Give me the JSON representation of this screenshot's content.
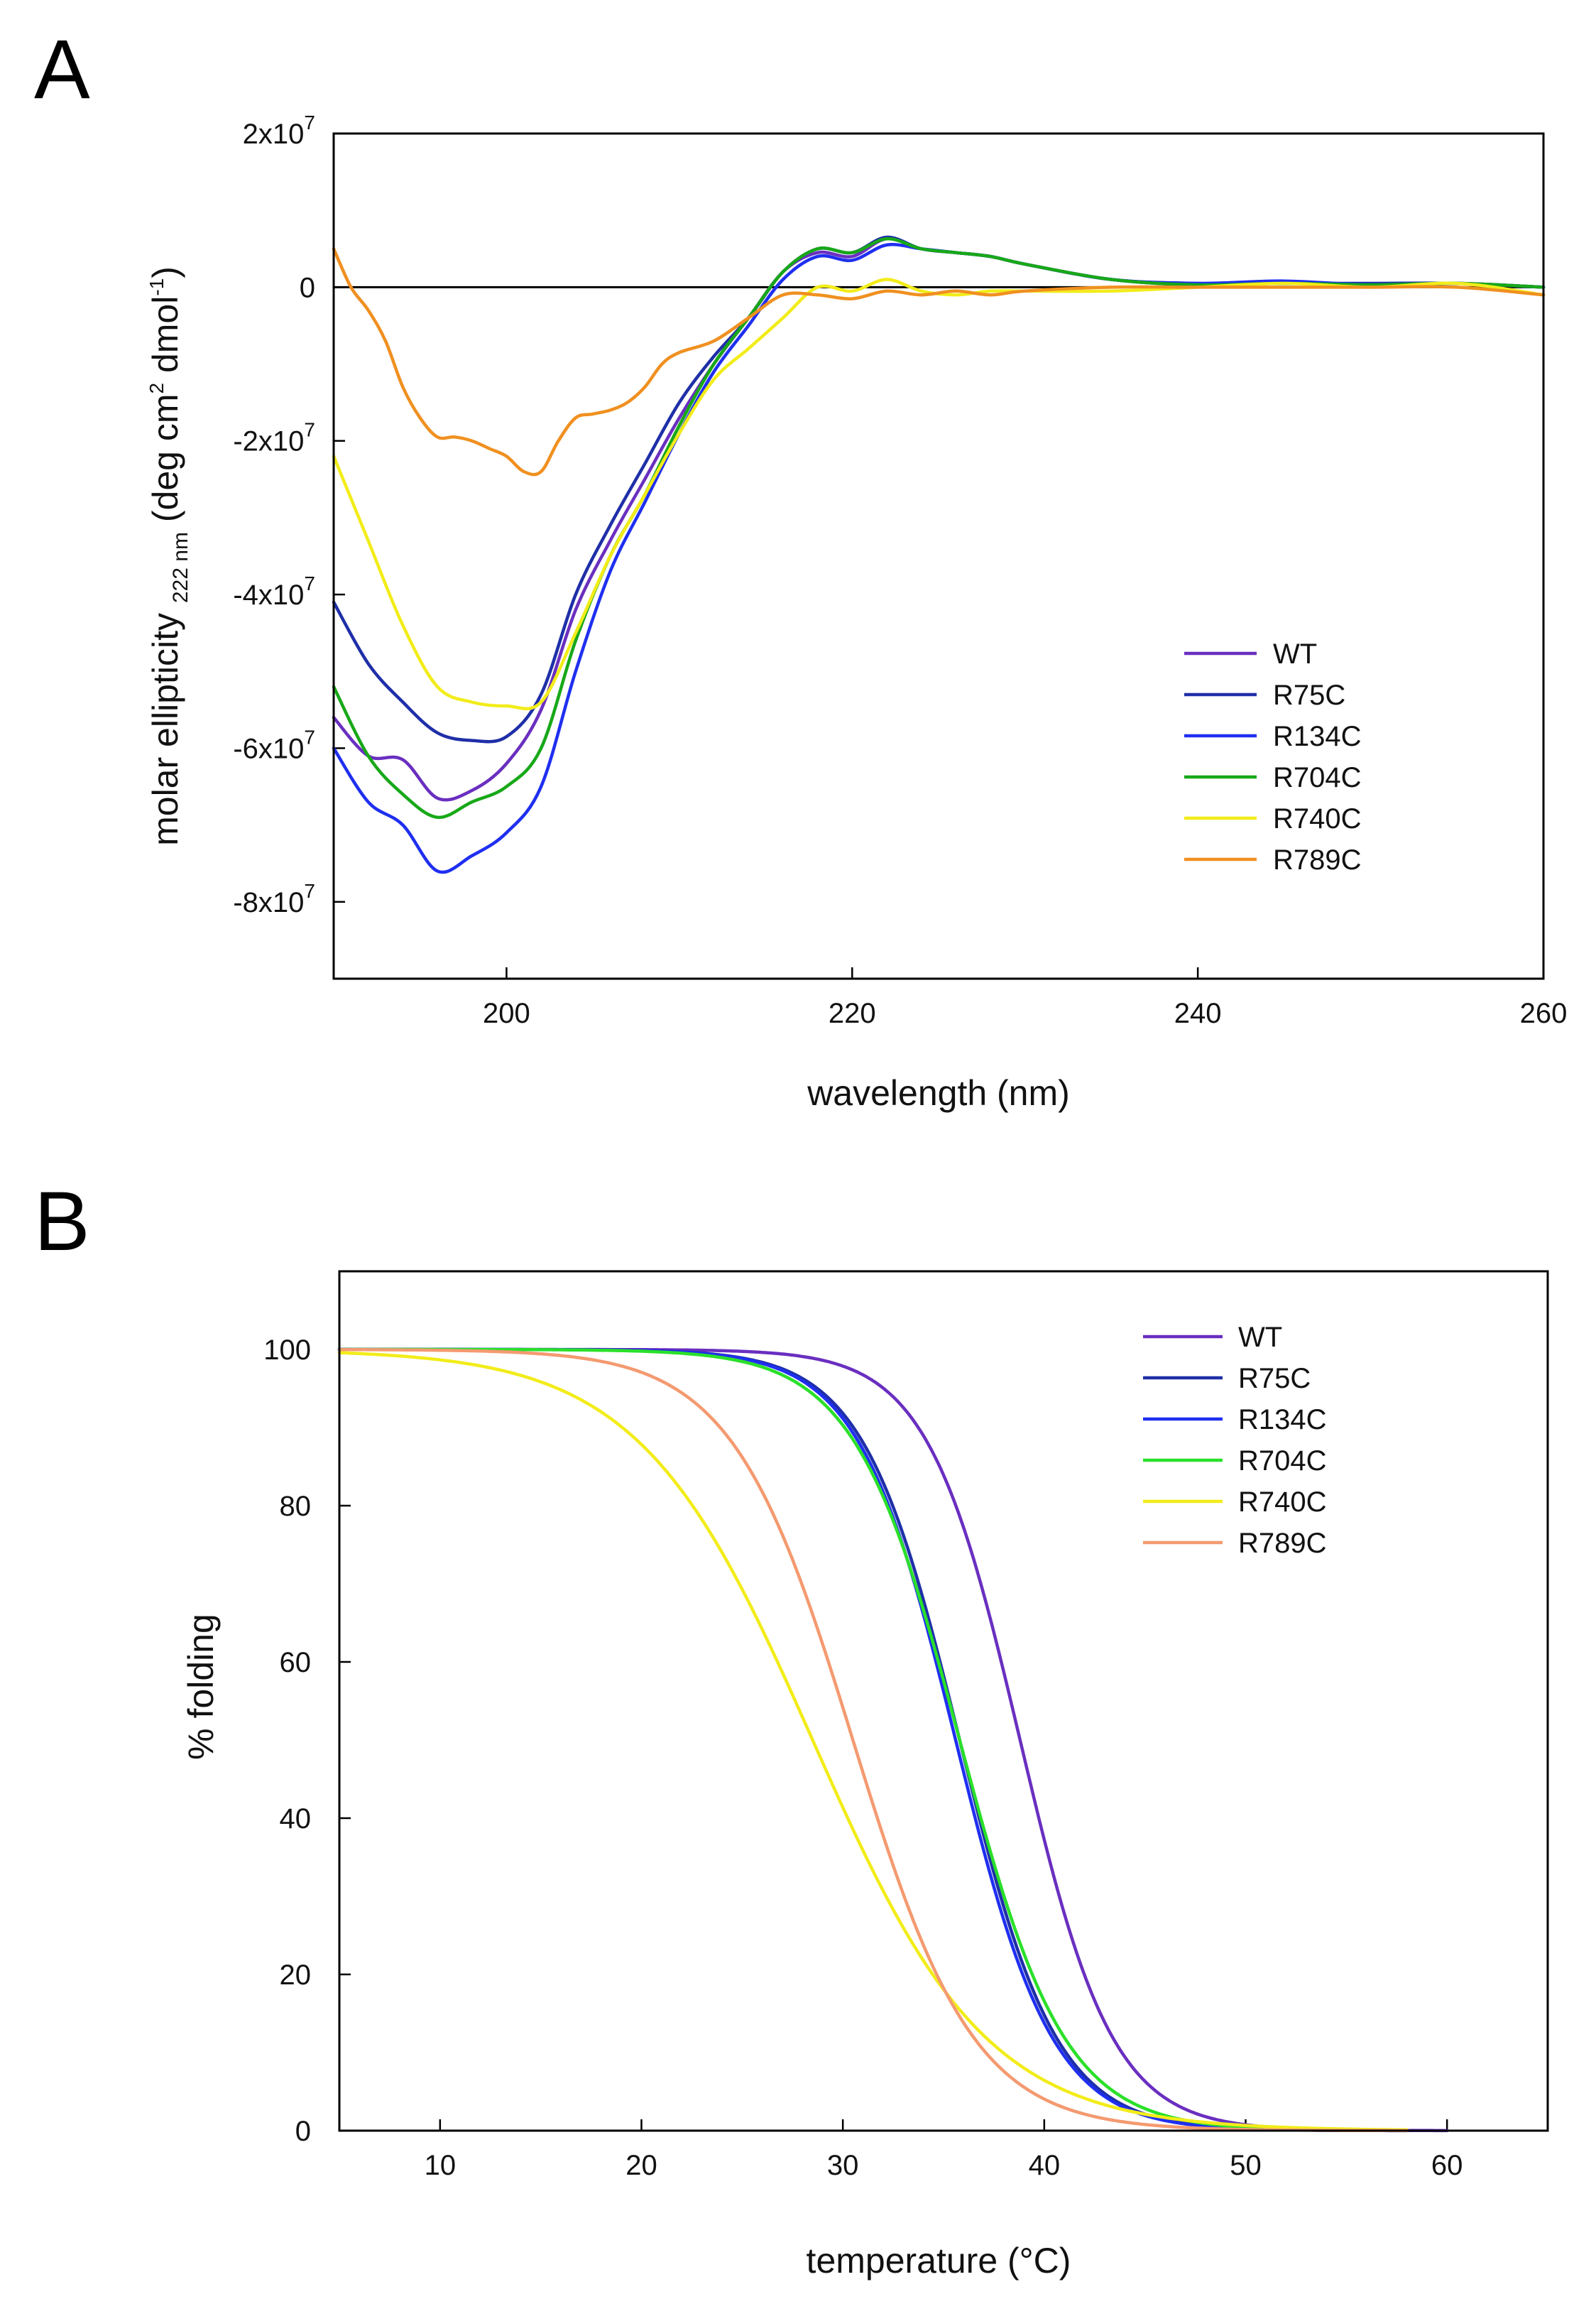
{
  "chart_data": [
    {
      "panel_letter": "A",
      "type": "line",
      "title": "",
      "xlabel": "wavelength (nm)",
      "ylabel": {
        "main": "molar ellipticity",
        "subscript": "222 nm",
        "units_open": "(deg cm",
        "units_exp1": "2",
        "units_mid": " dmol",
        "units_exp2": "-1",
        "units_close": ")"
      },
      "xlim": [
        190,
        260
      ],
      "ylim": [
        -90000000,
        20000000
      ],
      "x_ticks": [
        {
          "value": 200,
          "label": "200"
        },
        {
          "value": 220,
          "label": "220"
        },
        {
          "value": 240,
          "label": "240"
        },
        {
          "value": 260,
          "label": "260"
        }
      ],
      "y_ticks": [
        {
          "value": 20000000,
          "mant": "2x10",
          "exp": "7"
        },
        {
          "value": 0,
          "mant": "0",
          "exp": ""
        },
        {
          "value": -20000000,
          "mant": "-2x10",
          "exp": "7"
        },
        {
          "value": -40000000,
          "mant": "-4x10",
          "exp": "7"
        },
        {
          "value": -60000000,
          "mant": "-6x10",
          "exp": "7"
        },
        {
          "value": -80000000,
          "mant": "-8x10",
          "exp": "7"
        }
      ],
      "zero_line": true,
      "legend_position": "lower-right",
      "series": [
        {
          "name": "WT",
          "color": "#6a2fc0",
          "x": [
            190,
            192,
            194,
            196,
            198,
            200,
            202,
            204,
            206,
            208,
            210,
            212,
            214,
            216,
            218,
            220,
            222,
            224,
            226,
            228,
            230,
            235,
            240,
            245,
            250,
            255,
            260
          ],
          "y": [
            -56000000.0,
            -61000000.0,
            -61500000.0,
            -66500000.0,
            -65500000.0,
            -62000000.0,
            -55000000.0,
            -42000000.0,
            -33000000.0,
            -25000000.0,
            -17000000.0,
            -10000000.0,
            -4000000.0,
            2000000.0,
            4500000.0,
            4000000.0,
            6300000.0,
            5000000.0,
            4500000.0,
            4000000.0,
            3000000.0,
            1000000.0,
            300000.0,
            500000.0,
            300000.0,
            500000.0,
            0
          ]
        },
        {
          "name": "R75C",
          "color": "#1f2fa8",
          "x": [
            190,
            192,
            194,
            196,
            198,
            200,
            202,
            204,
            206,
            208,
            210,
            212,
            214,
            216,
            218,
            220,
            222,
            224,
            226,
            228,
            230,
            235,
            240,
            245,
            250,
            255,
            260
          ],
          "y": [
            -41000000.0,
            -49000000.0,
            -54000000.0,
            -58000000.0,
            -59000000.0,
            -58500000.0,
            -53000000.0,
            -40000000.0,
            -31000000.0,
            -23000000.0,
            -15000000.0,
            -9000000.0,
            -4000000.0,
            2000000.0,
            5000000.0,
            4500000.0,
            6500000.0,
            5000000.0,
            4500000.0,
            4000000.0,
            3000000.0,
            1000000.0,
            500000.0,
            500000.0,
            500000.0,
            500000.0,
            0
          ]
        },
        {
          "name": "R134C",
          "color": "#1f2ff0",
          "x": [
            190,
            192,
            194,
            196,
            198,
            200,
            202,
            204,
            206,
            208,
            210,
            212,
            214,
            216,
            218,
            220,
            222,
            224,
            226,
            228,
            230,
            235,
            240,
            245,
            250,
            255,
            260
          ],
          "y": [
            -60000000.0,
            -67000000.0,
            -70000000.0,
            -76000000.0,
            -74000000.0,
            -71000000.0,
            -65000000.0,
            -50000000.0,
            -37000000.0,
            -28000000.0,
            -19000000.0,
            -11000000.0,
            -5000000.0,
            1000000.0,
            4000000.0,
            3500000.0,
            5500000.0,
            5000000.0,
            4500000.0,
            4000000.0,
            3000000.0,
            1000000.0,
            500000.0,
            800000.0,
            300000.0,
            500000.0,
            0
          ]
        },
        {
          "name": "R704C",
          "color": "#18a818",
          "x": [
            190,
            192,
            194,
            196,
            198,
            200,
            202,
            204,
            206,
            208,
            210,
            212,
            214,
            216,
            218,
            220,
            222,
            224,
            226,
            228,
            230,
            235,
            240,
            245,
            250,
            255,
            260
          ],
          "y": [
            -52000000.0,
            -61000000.0,
            -66000000.0,
            -69000000.0,
            -67000000.0,
            -65000000.0,
            -60000000.0,
            -46000000.0,
            -35000000.0,
            -27000000.0,
            -18000000.0,
            -10000000.0,
            -4000000.0,
            2000000.0,
            5000000.0,
            4500000.0,
            6300000.0,
            5000000.0,
            4500000.0,
            4000000.0,
            3000000.0,
            1000000.0,
            300000.0,
            500000.0,
            300000.0,
            500000.0,
            0
          ]
        },
        {
          "name": "R740C",
          "color": "#f2ec1a",
          "x": [
            190,
            192,
            194,
            196,
            198,
            200,
            202,
            204,
            206,
            208,
            210,
            212,
            214,
            216,
            218,
            220,
            222,
            224,
            226,
            228,
            230,
            235,
            240,
            245,
            250,
            255,
            260
          ],
          "y": [
            -22000000.0,
            -33000000.0,
            -44000000.0,
            -52000000.0,
            -54000000.0,
            -54500000.0,
            -54000000.0,
            -45000000.0,
            -35000000.0,
            -27000000.0,
            -19000000.0,
            -12000000.0,
            -8000000.0,
            -4000000.0,
            0,
            -500000.0,
            1000000.0,
            -500000.0,
            -1000000.0,
            -500000.0,
            -500000.0,
            -500000.0,
            0,
            500000.0,
            0,
            500000.0,
            -1000000.0
          ]
        },
        {
          "name": "R789C",
          "color": "#f09020",
          "x": [
            190,
            191,
            192,
            193,
            194,
            195,
            196,
            197,
            198,
            199,
            200,
            201,
            202,
            203,
            204,
            205,
            206,
            207,
            208,
            209,
            210,
            212,
            214,
            216,
            218,
            220,
            222,
            224,
            226,
            228,
            230,
            235,
            240,
            245,
            250,
            255,
            260
          ],
          "y": [
            5000000.0,
            0,
            -3000000.0,
            -7000000.0,
            -13000000.0,
            -17000000.0,
            -19500000.0,
            -19500000.0,
            -20000000.0,
            -21000000.0,
            -22000000.0,
            -24000000.0,
            -24000000.0,
            -20000000.0,
            -17000000.0,
            -16500000.0,
            -16000000.0,
            -15000000.0,
            -13000000.0,
            -10000000.0,
            -8500000.0,
            -7000000.0,
            -4000000.0,
            -1000000.0,
            -1000000.0,
            -1500000.0,
            -500000.0,
            -1000000.0,
            -500000.0,
            -1000000.0,
            -500000.0,
            0,
            0,
            0,
            0,
            0,
            -1000000.0
          ]
        }
      ]
    },
    {
      "panel_letter": "B",
      "type": "line",
      "title": "",
      "xlabel": "temperature (°C)",
      "ylabel": "% folding",
      "xlim": [
        5,
        65
      ],
      "ylim": [
        0,
        110
      ],
      "x_ticks": [
        {
          "value": 10,
          "label": "10"
        },
        {
          "value": 20,
          "label": "20"
        },
        {
          "value": 30,
          "label": "30"
        },
        {
          "value": 40,
          "label": "40"
        },
        {
          "value": 50,
          "label": "50"
        },
        {
          "value": 60,
          "label": "60"
        }
      ],
      "y_ticks": [
        {
          "value": 0,
          "label": "0"
        },
        {
          "value": 20,
          "label": "20"
        },
        {
          "value": 40,
          "label": "40"
        },
        {
          "value": 60,
          "label": "60"
        },
        {
          "value": 80,
          "label": "80"
        },
        {
          "value": 100,
          "label": "100"
        }
      ],
      "legend_position": "top-right",
      "model": "sigmoid: 100 / (1 + exp((T - Tm) / k))",
      "series": [
        {
          "name": "WT",
          "color": "#6a2fc0",
          "Tm": 38.8,
          "k": 2.3,
          "x_range": [
            5,
            60
          ]
        },
        {
          "name": "R75C",
          "color": "#1f2fa8",
          "Tm": 35.8,
          "k": 2.4,
          "x_range": [
            5,
            58
          ]
        },
        {
          "name": "R134C",
          "color": "#1f2ff0",
          "Tm": 35.6,
          "k": 2.4,
          "x_range": [
            5,
            58
          ]
        },
        {
          "name": "R704C",
          "color": "#2ae02a",
          "Tm": 35.8,
          "k": 2.6,
          "x_range": [
            5,
            58
          ]
        },
        {
          "name": "R740C",
          "color": "#f2ec1a",
          "Tm": 28.5,
          "k": 4.3,
          "x_range": [
            5,
            58
          ]
        },
        {
          "name": "R789C",
          "color": "#f49a70",
          "Tm": 30.5,
          "k": 3.0,
          "x_range": [
            5,
            58
          ]
        }
      ]
    }
  ]
}
